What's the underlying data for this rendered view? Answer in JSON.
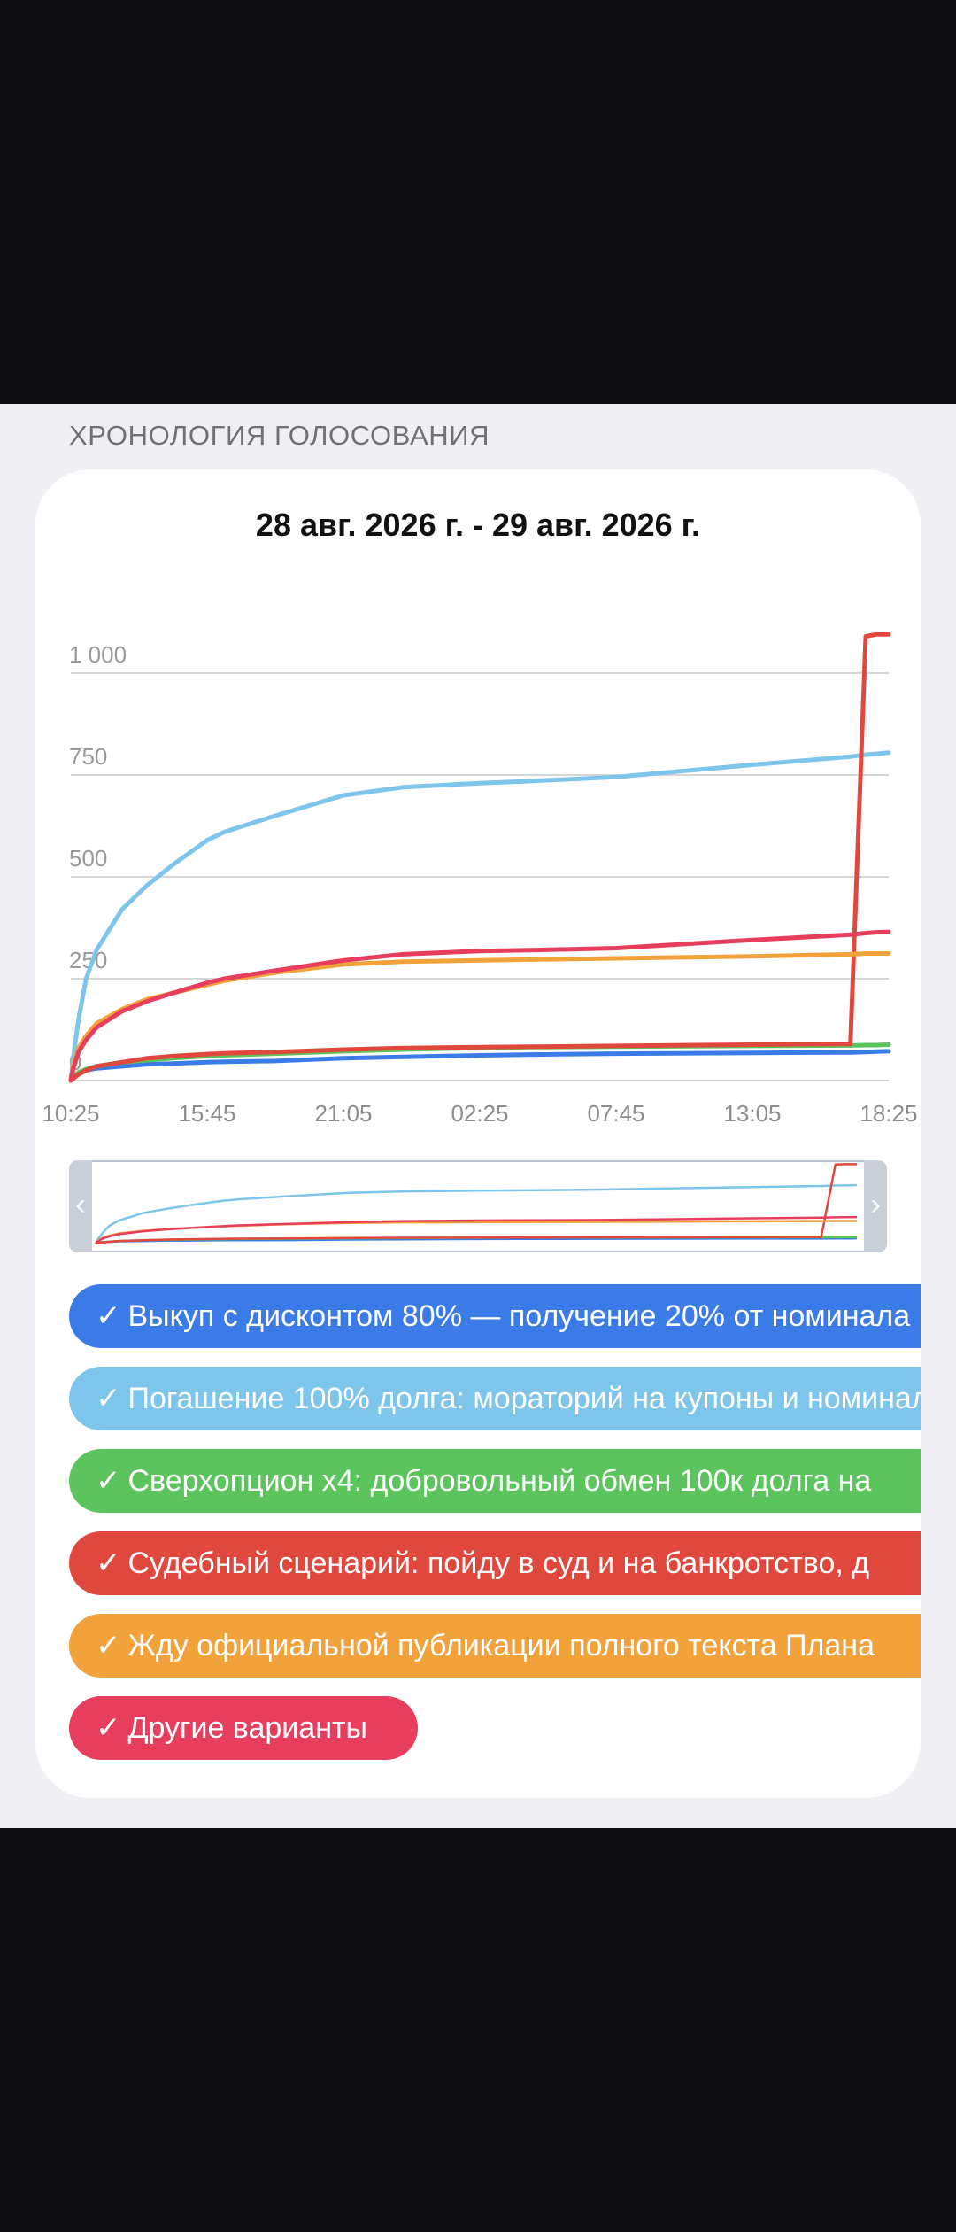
{
  "section_title": "ХРОНОЛОГИЯ ГОЛОСОВАНИЯ",
  "date_range": "28 авг. 2026 г. - 29 авг. 2026 г.",
  "navigator": {
    "left_icon": "chevron-left-icon",
    "right_icon": "chevron-right-icon"
  },
  "chart_data": {
    "type": "line",
    "title": "28 авг. 2026 г. - 29 авг. 2026 г.",
    "xlabel": "",
    "ylabel": "",
    "x_ticks": [
      "10:25",
      "15:45",
      "21:05",
      "02:25",
      "07:45",
      "13:05",
      "18:25"
    ],
    "y_ticks": [
      "0",
      "250",
      "500",
      "750",
      "1 000"
    ],
    "ylim": [
      0,
      1000
    ],
    "grid": true,
    "x": [
      0,
      0.1,
      0.3,
      0.6,
      1,
      2,
      3,
      4,
      5.333,
      6,
      8,
      10.667,
      13,
      16,
      18,
      21.333,
      26.667,
      30.5,
      31.1,
      31.5,
      32
    ],
    "series": [
      {
        "color": "#3a7be8",
        "values": [
          0,
          10,
          18,
          25,
          30,
          35,
          40,
          42,
          45,
          46,
          48,
          55,
          58,
          62,
          64,
          66,
          68,
          69,
          70,
          71,
          72
        ]
      },
      {
        "color": "#7ec5ec",
        "values": [
          0,
          60,
          150,
          250,
          320,
          420,
          480,
          530,
          590,
          610,
          650,
          700,
          720,
          730,
          735,
          745,
          775,
          795,
          800,
          802,
          805
        ]
      },
      {
        "color": "#5cc45c",
        "values": [
          0,
          10,
          20,
          28,
          35,
          45,
          50,
          55,
          60,
          62,
          66,
          72,
          76,
          80,
          82,
          83,
          85,
          86,
          87,
          87,
          88
        ]
      },
      {
        "color": "#e0473d",
        "values": [
          0,
          5,
          15,
          25,
          35,
          45,
          55,
          60,
          65,
          67,
          70,
          76,
          80,
          82,
          83,
          85,
          88,
          90,
          1090,
          1095,
          1095
        ]
      },
      {
        "color": "#f1a23b",
        "values": [
          0,
          40,
          80,
          110,
          140,
          175,
          200,
          215,
          235,
          245,
          265,
          285,
          292,
          295,
          297,
          300,
          305,
          310,
          312,
          312,
          312
        ]
      },
      {
        "color": "#e83e5e",
        "values": [
          0,
          30,
          70,
          100,
          130,
          170,
          195,
          215,
          240,
          250,
          270,
          295,
          310,
          318,
          320,
          325,
          345,
          358,
          362,
          364,
          365
        ]
      }
    ]
  },
  "options": [
    {
      "label": "Выкуп с дисконтом 80% — получение 20% от номинала",
      "color": "#3a7be8"
    },
    {
      "label": "Погашение 100% долга: мораторий на купоны и номинал",
      "color": "#7ec5ec"
    },
    {
      "label": "Сверхопцион х4: добровольный обмен 100к долга на",
      "color": "#5cc45c"
    },
    {
      "label": "Судебный сценарий: пойду в суд и на банкротство, д",
      "color": "#e0473d"
    },
    {
      "label": "Жду официальной публикации полного текста Плана",
      "color": "#f1a23b"
    },
    {
      "label": "Другие варианты",
      "color": "#e83e5e"
    }
  ],
  "check_mark": "✓"
}
